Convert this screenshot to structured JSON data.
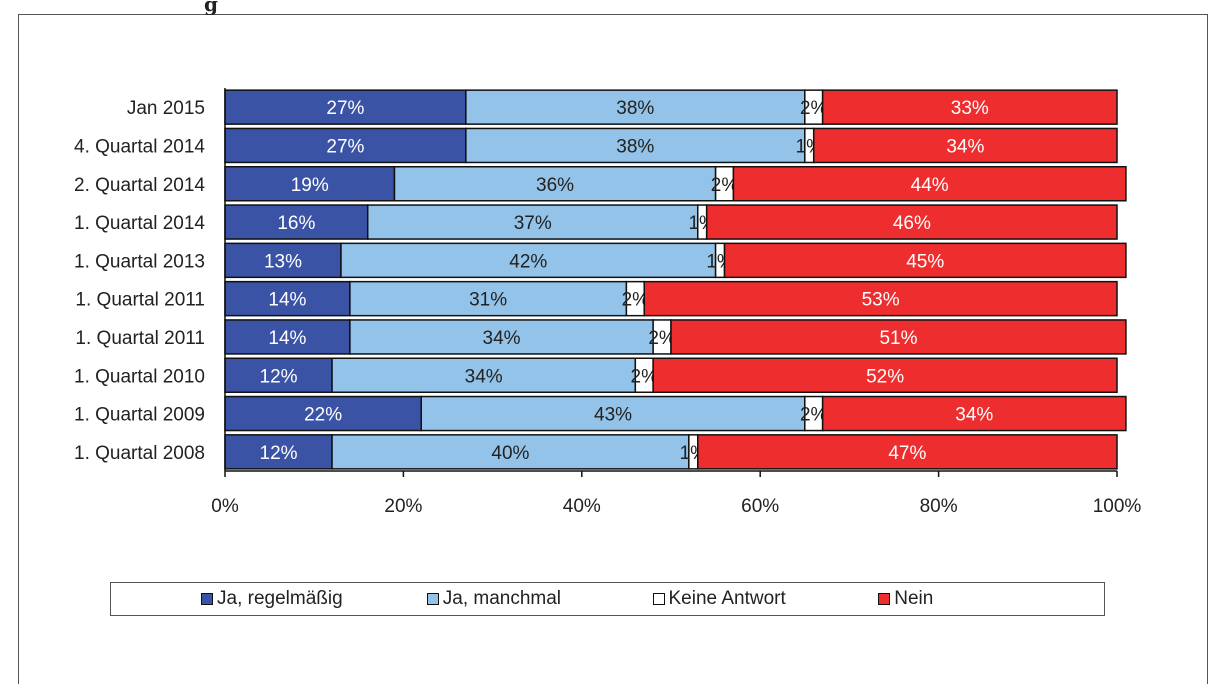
{
  "chart_data": {
    "type": "bar",
    "orientation": "horizontal",
    "stacked": true,
    "categories": [
      "Jan 2015",
      "4. Quartal 2014",
      "2. Quartal 2014",
      "1. Quartal 2014",
      "1. Quartal 2013",
      "1. Quartal 2011",
      "1. Quartal 2011",
      "1. Quartal 2010",
      "1. Quartal 2009",
      "1. Quartal 2008"
    ],
    "series": [
      {
        "name": "Ja, regelmäßig",
        "color": "#3a53a4",
        "labelColor": "#ffffff",
        "values": [
          27,
          27,
          19,
          16,
          13,
          14,
          14,
          12,
          22,
          12
        ]
      },
      {
        "name": "Ja, manchmal",
        "color": "#93c3e8",
        "labelColor": "#222222",
        "values": [
          38,
          38,
          36,
          37,
          42,
          31,
          34,
          34,
          43,
          40
        ]
      },
      {
        "name": "Keine Antwort",
        "color": "#ffffff",
        "labelColor": "#222222",
        "values": [
          2,
          1,
          2,
          1,
          1,
          2,
          2,
          2,
          2,
          1
        ]
      },
      {
        "name": "Nein",
        "color": "#ee2e2e",
        "labelColor": "#ffffff",
        "values": [
          33,
          34,
          44,
          46,
          45,
          53,
          51,
          52,
          34,
          47
        ]
      }
    ],
    "xlim": [
      0,
      100
    ],
    "xticks": [
      "0%",
      "20%",
      "40%",
      "60%",
      "80%",
      "100%"
    ],
    "legend_position": "bottom",
    "grid": false
  }
}
